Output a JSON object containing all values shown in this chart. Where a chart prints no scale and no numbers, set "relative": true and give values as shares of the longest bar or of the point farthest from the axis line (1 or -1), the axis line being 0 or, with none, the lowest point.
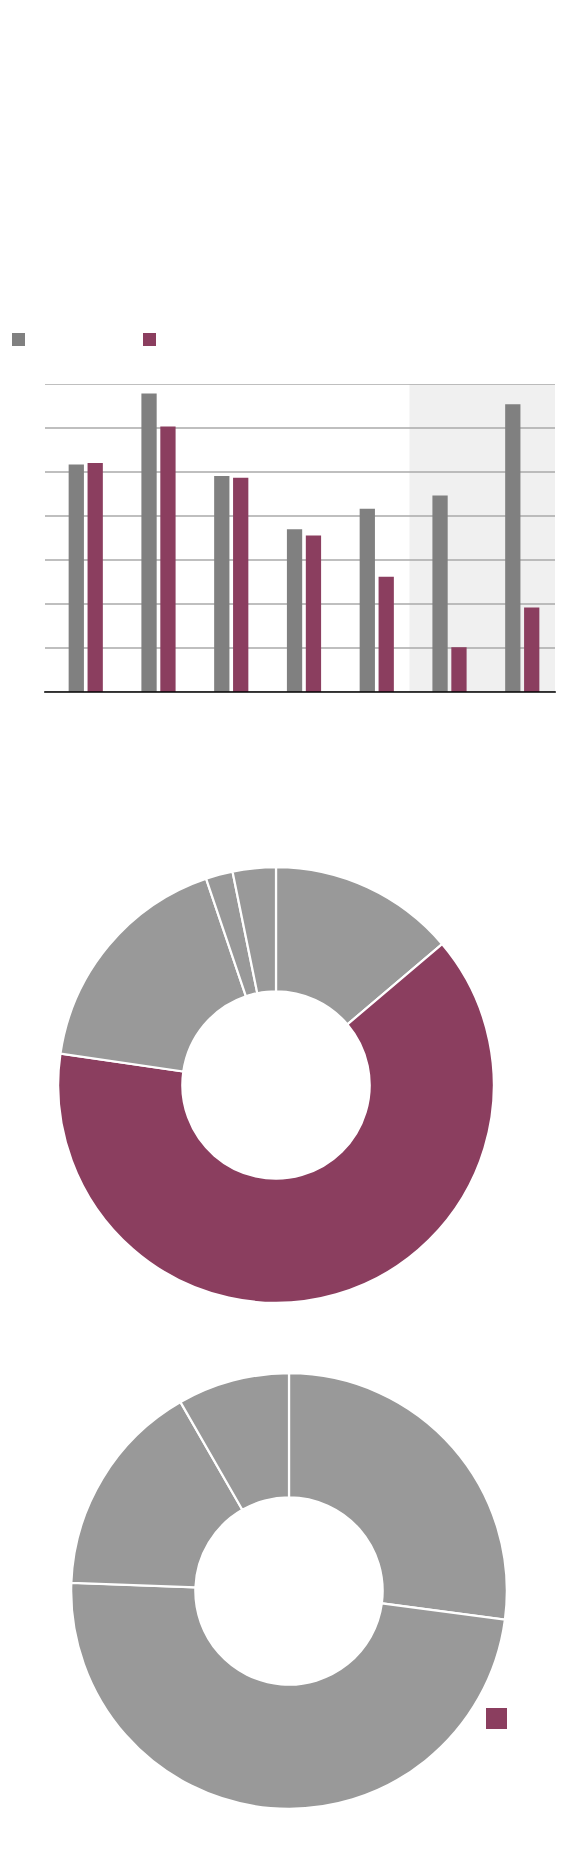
{
  "chart_data": [
    {
      "type": "bar",
      "relative": true,
      "categories": [
        null,
        null,
        null,
        null,
        null,
        null,
        null
      ],
      "series": [
        {
          "color": "#808080",
          "values": [
            0.762,
            1,
            0.724,
            0.545,
            0.614,
            0.658,
            0.964
          ]
        },
        {
          "color": "#8b3e5f",
          "values": [
            0.767,
            0.89,
            0.718,
            0.524,
            0.386,
            0.15,
            0.283
          ]
        }
      ],
      "grid": "y"
    },
    {
      "type": "donut",
      "categories": [
        null,
        null,
        null,
        null,
        null
      ],
      "values": [
        13.8,
        63.5,
        17.5,
        2.0,
        3.2
      ],
      "colors": [
        "#999999",
        "#8b3e5f",
        "#999999",
        "#999999",
        "#999999"
      ]
    },
    {
      "type": "donut",
      "categories": [
        null,
        null,
        null,
        null
      ],
      "values": [
        27.1,
        48.5,
        16.1,
        8.3
      ],
      "colors": [
        "#999999",
        "#999999",
        "#999999",
        "#999999"
      ]
    }
  ]
}
